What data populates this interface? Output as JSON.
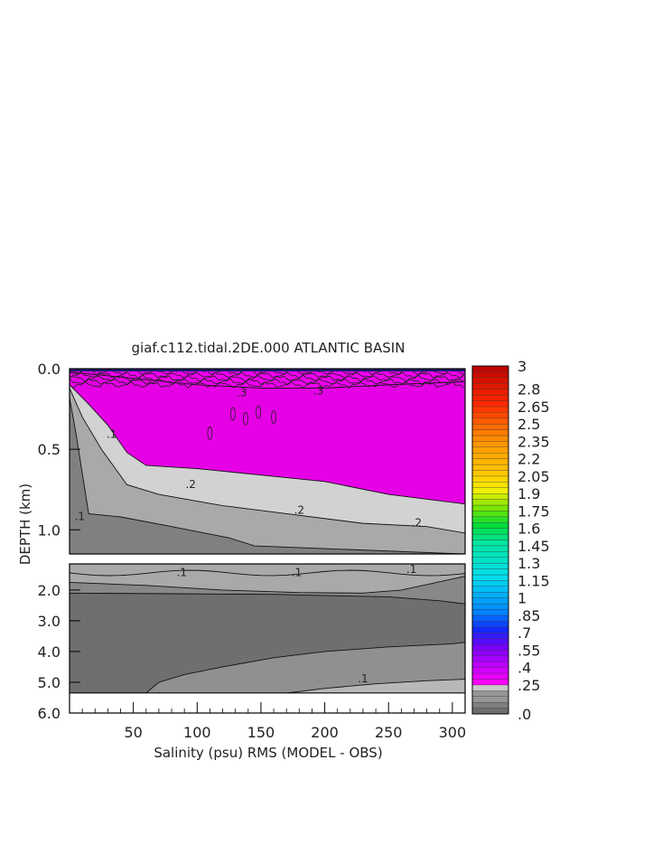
{
  "chart_data": {
    "type": "heatmap",
    "title": "giaf.c112.tidal.2DE.000 ATLANTIC BASIN",
    "xlabel": "Salinity (psu) RMS (MODEL - OBS)",
    "ylabel": "DEPTH (km)",
    "xlim": [
      0,
      310
    ],
    "upper_panel": {
      "ylim": [
        0,
        1.15
      ],
      "yticks": [
        "0.0",
        "0.5",
        "1.0"
      ],
      "layers": [
        {
          "level": 0.25,
          "color": "#f000f0",
          "boundary": [
            [
              0,
              0.02
            ],
            [
              50,
              0.06
            ],
            [
              100,
              0.1
            ],
            [
              150,
              0.12
            ],
            [
              200,
              0.12
            ],
            [
              250,
              0.1
            ],
            [
              310,
              0.08
            ]
          ]
        },
        {
          "level": 0.2,
          "color": "#e600e6",
          "boundary": [
            [
              0,
              0.1
            ],
            [
              15,
              0.22
            ],
            [
              30,
              0.35
            ],
            [
              45,
              0.52
            ],
            [
              60,
              0.6
            ],
            [
              100,
              0.62
            ],
            [
              150,
              0.66
            ],
            [
              200,
              0.7
            ],
            [
              250,
              0.78
            ],
            [
              310,
              0.84
            ]
          ]
        },
        {
          "level": 0.1,
          "color": "#d2d2d2",
          "boundary": [
            [
              0,
              0.12
            ],
            [
              10,
              0.3
            ],
            [
              25,
              0.5
            ],
            [
              45,
              0.72
            ],
            [
              70,
              0.78
            ],
            [
              120,
              0.85
            ],
            [
              170,
              0.9
            ],
            [
              230,
              0.96
            ],
            [
              280,
              0.98
            ],
            [
              310,
              1.02
            ]
          ]
        },
        {
          "level": 0.05,
          "color": "#a9a9a9",
          "boundary": [
            [
              0,
              0.18
            ],
            [
              5,
              0.4
            ],
            [
              10,
              0.65
            ],
            [
              15,
              0.9
            ],
            [
              40,
              0.92
            ],
            [
              80,
              0.98
            ],
            [
              125,
              1.05
            ],
            [
              145,
              1.1
            ],
            [
              310,
              1.15
            ]
          ]
        }
      ],
      "contour_labels": [
        {
          "text": ".1",
          "x": 33,
          "y": 0.43
        },
        {
          "text": ".2",
          "x": 95,
          "y": 0.74
        },
        {
          "text": ".2",
          "x": 180,
          "y": 0.9
        },
        {
          "text": ".2",
          "x": 272,
          "y": 0.98
        },
        {
          "text": ".1",
          "x": 8,
          "y": 0.94
        },
        {
          "text": ".3",
          "x": 135,
          "y": 0.17
        },
        {
          "text": ".3",
          "x": 195,
          "y": 0.16
        }
      ]
    },
    "lower_panel": {
      "ylim": [
        1.15,
        6.0
      ],
      "yticks": [
        "2.0",
        "3.0",
        "4.0",
        "5.0",
        "6.0"
      ],
      "bottom_limit": 5.35,
      "layers": [
        {
          "level": 0.1,
          "color": "#a9a9a9",
          "boundary": [
            [
              0,
              1.2
            ],
            [
              100,
              1.2
            ],
            [
              200,
              1.2
            ],
            [
              310,
              1.2
            ]
          ]
        },
        {
          "level": 0.05,
          "color": "#888888",
          "boundary": [
            [
              0,
              1.75
            ],
            [
              60,
              1.85
            ],
            [
              120,
              2.0
            ],
            [
              180,
              2.08
            ],
            [
              230,
              2.1
            ],
            [
              260,
              2.0
            ],
            [
              310,
              1.55
            ]
          ]
        },
        {
          "level": 0.0,
          "color": "#6f6f6f",
          "boundary": [
            [
              0,
              2.1
            ],
            [
              80,
              2.12
            ],
            [
              160,
              2.14
            ],
            [
              200,
              2.18
            ],
            [
              250,
              2.22
            ],
            [
              290,
              2.35
            ],
            [
              310,
              2.45
            ]
          ]
        },
        {
          "level": 0.05,
          "color": "#909090",
          "boundary": [
            [
              60,
              5.35
            ],
            [
              70,
              5.0
            ],
            [
              90,
              4.75
            ],
            [
              120,
              4.5
            ],
            [
              160,
              4.2
            ],
            [
              200,
              4.0
            ],
            [
              250,
              3.85
            ],
            [
              300,
              3.75
            ],
            [
              310,
              3.7
            ]
          ]
        },
        {
          "level": 0.1,
          "color": "#b8b8b8",
          "boundary": [
            [
              170,
              5.35
            ],
            [
              200,
              5.2
            ],
            [
              240,
              5.05
            ],
            [
              280,
              4.95
            ],
            [
              310,
              4.9
            ]
          ]
        }
      ],
      "contour_labels": [
        {
          "text": ".1",
          "x": 88,
          "y": 1.55
        },
        {
          "text": ".1",
          "x": 178,
          "y": 1.55
        },
        {
          "text": ".1",
          "x": 268,
          "y": 1.45
        },
        {
          "text": ".1",
          "x": 230,
          "y": 5.0
        }
      ]
    },
    "xticks": [
      "50",
      "100",
      "150",
      "200",
      "250",
      "300"
    ],
    "colorbar": {
      "labels": [
        "3",
        "2.8",
        "2.65",
        "2.5",
        "2.35",
        "2.2",
        "2.05",
        "1.9",
        "1.75",
        "1.6",
        "1.45",
        "1.3",
        "1.15",
        "1",
        ".85",
        ".7",
        ".55",
        ".4",
        ".25",
        ".0"
      ],
      "levels": [
        0,
        0.05,
        0.1,
        0.15,
        0.2,
        0.25,
        0.3,
        0.35,
        0.4,
        0.45,
        0.5,
        0.55,
        0.6,
        0.65,
        0.7,
        0.75,
        0.8,
        0.85,
        0.9,
        0.95,
        1.0,
        1.05,
        1.1,
        1.15,
        1.2,
        1.25,
        1.3,
        1.35,
        1.4,
        1.45,
        1.5,
        1.55,
        1.6,
        1.65,
        1.7,
        1.75,
        1.8,
        1.85,
        1.9,
        1.95,
        2.0,
        2.05,
        2.1,
        2.15,
        2.2,
        2.25,
        2.3,
        2.35,
        2.4,
        2.45,
        2.5,
        2.55,
        2.6,
        2.65,
        2.7,
        2.75,
        2.8,
        2.85,
        2.9,
        2.95,
        3.0
      ]
    }
  }
}
